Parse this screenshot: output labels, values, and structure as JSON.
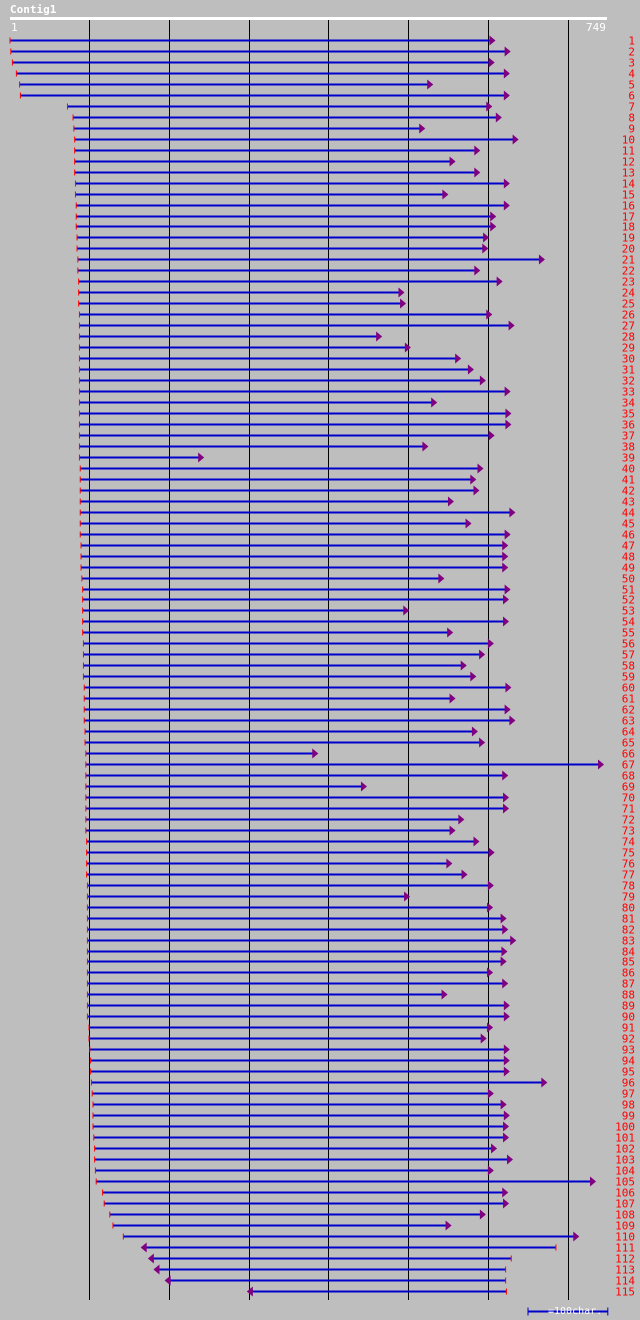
{
  "contig": {
    "name": "Contig1",
    "start_label": "1",
    "end_label": "749"
  },
  "legend": {
    "text": "=100char."
  },
  "colors": {
    "background": "#bebebe",
    "read_line": "#0000cc",
    "arrow": "#800080",
    "start_tick": "#ff0000",
    "label": "#ff0000",
    "grid": "#000000"
  },
  "axis": {
    "min": 1,
    "max": 749,
    "gridlines": [
      100,
      200,
      300,
      400,
      500,
      600,
      700
    ]
  },
  "reads": [
    {
      "id": "1",
      "start": 1,
      "end": 608,
      "dir": "fwd"
    },
    {
      "id": "2",
      "start": 2,
      "end": 627,
      "dir": "fwd"
    },
    {
      "id": "3",
      "start": 4,
      "end": 607,
      "dir": "fwd"
    },
    {
      "id": "4",
      "start": 9,
      "end": 626,
      "dir": "fwd"
    },
    {
      "id": "5",
      "start": 13,
      "end": 530,
      "dir": "fwd"
    },
    {
      "id": "6",
      "start": 14,
      "end": 626,
      "dir": "fwd"
    },
    {
      "id": "7",
      "start": 73,
      "end": 604,
      "dir": "fwd"
    },
    {
      "id": "8",
      "start": 80,
      "end": 616,
      "dir": "fwd"
    },
    {
      "id": "9",
      "start": 81,
      "end": 520,
      "dir": "fwd"
    },
    {
      "id": "10",
      "start": 82,
      "end": 637,
      "dir": "fwd"
    },
    {
      "id": "11",
      "start": 82,
      "end": 589,
      "dir": "fwd"
    },
    {
      "id": "12",
      "start": 82,
      "end": 558,
      "dir": "fwd"
    },
    {
      "id": "13",
      "start": 82,
      "end": 589,
      "dir": "fwd"
    },
    {
      "id": "14",
      "start": 83,
      "end": 626,
      "dir": "fwd"
    },
    {
      "id": "15",
      "start": 83,
      "end": 549,
      "dir": "fwd"
    },
    {
      "id": "16",
      "start": 84,
      "end": 626,
      "dir": "fwd"
    },
    {
      "id": "17",
      "start": 84,
      "end": 609,
      "dir": "fwd"
    },
    {
      "id": "18",
      "start": 84,
      "end": 609,
      "dir": "fwd"
    },
    {
      "id": "19",
      "start": 85,
      "end": 600,
      "dir": "fwd"
    },
    {
      "id": "20",
      "start": 85,
      "end": 599,
      "dir": "fwd"
    },
    {
      "id": "21",
      "start": 86,
      "end": 670,
      "dir": "fwd"
    },
    {
      "id": "22",
      "start": 86,
      "end": 589,
      "dir": "fwd"
    },
    {
      "id": "23",
      "start": 87,
      "end": 617,
      "dir": "fwd"
    },
    {
      "id": "24",
      "start": 87,
      "end": 494,
      "dir": "fwd"
    },
    {
      "id": "25",
      "start": 87,
      "end": 496,
      "dir": "fwd"
    },
    {
      "id": "26",
      "start": 88,
      "end": 604,
      "dir": "fwd"
    },
    {
      "id": "27",
      "start": 88,
      "end": 632,
      "dir": "fwd"
    },
    {
      "id": "28",
      "start": 88,
      "end": 466,
      "dir": "fwd"
    },
    {
      "id": "29",
      "start": 88,
      "end": 502,
      "dir": "fwd"
    },
    {
      "id": "30",
      "start": 88,
      "end": 565,
      "dir": "fwd"
    },
    {
      "id": "31",
      "start": 88,
      "end": 581,
      "dir": "fwd"
    },
    {
      "id": "32",
      "start": 88,
      "end": 596,
      "dir": "fwd"
    },
    {
      "id": "33",
      "start": 88,
      "end": 627,
      "dir": "fwd"
    },
    {
      "id": "34",
      "start": 88,
      "end": 535,
      "dir": "fwd"
    },
    {
      "id": "35",
      "start": 88,
      "end": 628,
      "dir": "fwd"
    },
    {
      "id": "36",
      "start": 88,
      "end": 628,
      "dir": "fwd"
    },
    {
      "id": "37",
      "start": 88,
      "end": 607,
      "dir": "fwd"
    },
    {
      "id": "38",
      "start": 88,
      "end": 524,
      "dir": "fwd"
    },
    {
      "id": "39",
      "start": 88,
      "end": 243,
      "dir": "fwd"
    },
    {
      "id": "40",
      "start": 89,
      "end": 593,
      "dir": "fwd"
    },
    {
      "id": "41",
      "start": 89,
      "end": 584,
      "dir": "fwd"
    },
    {
      "id": "42",
      "start": 89,
      "end": 588,
      "dir": "fwd"
    },
    {
      "id": "43",
      "start": 89,
      "end": 556,
      "dir": "fwd"
    },
    {
      "id": "44",
      "start": 89,
      "end": 633,
      "dir": "fwd"
    },
    {
      "id": "45",
      "start": 89,
      "end": 578,
      "dir": "fwd"
    },
    {
      "id": "46",
      "start": 89,
      "end": 627,
      "dir": "fwd"
    },
    {
      "id": "47",
      "start": 90,
      "end": 624,
      "dir": "fwd"
    },
    {
      "id": "48",
      "start": 90,
      "end": 624,
      "dir": "fwd"
    },
    {
      "id": "49",
      "start": 90,
      "end": 624,
      "dir": "fwd"
    },
    {
      "id": "50",
      "start": 91,
      "end": 544,
      "dir": "fwd"
    },
    {
      "id": "51",
      "start": 92,
      "end": 627,
      "dir": "fwd"
    },
    {
      "id": "52",
      "start": 92,
      "end": 625,
      "dir": "fwd"
    },
    {
      "id": "53",
      "start": 92,
      "end": 500,
      "dir": "fwd"
    },
    {
      "id": "54",
      "start": 92,
      "end": 625,
      "dir": "fwd"
    },
    {
      "id": "55",
      "start": 92,
      "end": 555,
      "dir": "fwd"
    },
    {
      "id": "56",
      "start": 93,
      "end": 606,
      "dir": "fwd"
    },
    {
      "id": "57",
      "start": 93,
      "end": 595,
      "dir": "fwd"
    },
    {
      "id": "58",
      "start": 93,
      "end": 572,
      "dir": "fwd"
    },
    {
      "id": "59",
      "start": 93,
      "end": 584,
      "dir": "fwd"
    },
    {
      "id": "60",
      "start": 94,
      "end": 628,
      "dir": "fwd"
    },
    {
      "id": "61",
      "start": 94,
      "end": 558,
      "dir": "fwd"
    },
    {
      "id": "62",
      "start": 94,
      "end": 627,
      "dir": "fwd"
    },
    {
      "id": "63",
      "start": 94,
      "end": 633,
      "dir": "fwd"
    },
    {
      "id": "64",
      "start": 95,
      "end": 586,
      "dir": "fwd"
    },
    {
      "id": "65",
      "start": 95,
      "end": 595,
      "dir": "fwd"
    },
    {
      "id": "66",
      "start": 96,
      "end": 386,
      "dir": "fwd"
    },
    {
      "id": "67",
      "start": 96,
      "end": 744,
      "dir": "fwd"
    },
    {
      "id": "68",
      "start": 96,
      "end": 624,
      "dir": "fwd"
    },
    {
      "id": "69",
      "start": 96,
      "end": 447,
      "dir": "fwd"
    },
    {
      "id": "70",
      "start": 96,
      "end": 625,
      "dir": "fwd"
    },
    {
      "id": "71",
      "start": 96,
      "end": 625,
      "dir": "fwd"
    },
    {
      "id": "72",
      "start": 96,
      "end": 569,
      "dir": "fwd"
    },
    {
      "id": "73",
      "start": 96,
      "end": 558,
      "dir": "fwd"
    },
    {
      "id": "74",
      "start": 97,
      "end": 588,
      "dir": "fwd"
    },
    {
      "id": "75",
      "start": 97,
      "end": 607,
      "dir": "fwd"
    },
    {
      "id": "76",
      "start": 97,
      "end": 554,
      "dir": "fwd"
    },
    {
      "id": "77",
      "start": 97,
      "end": 573,
      "dir": "fwd"
    },
    {
      "id": "78",
      "start": 98,
      "end": 606,
      "dir": "fwd"
    },
    {
      "id": "79",
      "start": 98,
      "end": 501,
      "dir": "fwd"
    },
    {
      "id": "80",
      "start": 98,
      "end": 605,
      "dir": "fwd"
    },
    {
      "id": "81",
      "start": 98,
      "end": 622,
      "dir": "fwd"
    },
    {
      "id": "82",
      "start": 98,
      "end": 624,
      "dir": "fwd"
    },
    {
      "id": "83",
      "start": 98,
      "end": 634,
      "dir": "fwd"
    },
    {
      "id": "84",
      "start": 98,
      "end": 623,
      "dir": "fwd"
    },
    {
      "id": "85",
      "start": 98,
      "end": 622,
      "dir": "fwd"
    },
    {
      "id": "86",
      "start": 98,
      "end": 605,
      "dir": "fwd"
    },
    {
      "id": "87",
      "start": 98,
      "end": 624,
      "dir": "fwd"
    },
    {
      "id": "88",
      "start": 98,
      "end": 548,
      "dir": "fwd"
    },
    {
      "id": "89",
      "start": 98,
      "end": 626,
      "dir": "fwd"
    },
    {
      "id": "90",
      "start": 98,
      "end": 626,
      "dir": "fwd"
    },
    {
      "id": "91",
      "start": 100,
      "end": 605,
      "dir": "fwd"
    },
    {
      "id": "92",
      "start": 100,
      "end": 597,
      "dir": "fwd"
    },
    {
      "id": "93",
      "start": 101,
      "end": 626,
      "dir": "fwd"
    },
    {
      "id": "94",
      "start": 102,
      "end": 626,
      "dir": "fwd"
    },
    {
      "id": "95",
      "start": 102,
      "end": 626,
      "dir": "fwd"
    },
    {
      "id": "96",
      "start": 103,
      "end": 673,
      "dir": "fwd"
    },
    {
      "id": "97",
      "start": 104,
      "end": 606,
      "dir": "fwd"
    },
    {
      "id": "98",
      "start": 105,
      "end": 622,
      "dir": "fwd"
    },
    {
      "id": "99",
      "start": 105,
      "end": 626,
      "dir": "fwd"
    },
    {
      "id": "100",
      "start": 105,
      "end": 625,
      "dir": "fwd"
    },
    {
      "id": "101",
      "start": 106,
      "end": 625,
      "dir": "fwd"
    },
    {
      "id": "102",
      "start": 107,
      "end": 610,
      "dir": "fwd"
    },
    {
      "id": "103",
      "start": 107,
      "end": 630,
      "dir": "fwd"
    },
    {
      "id": "104",
      "start": 108,
      "end": 606,
      "dir": "fwd"
    },
    {
      "id": "105",
      "start": 109,
      "end": 734,
      "dir": "fwd"
    },
    {
      "id": "106",
      "start": 117,
      "end": 624,
      "dir": "fwd"
    },
    {
      "id": "107",
      "start": 119,
      "end": 625,
      "dir": "fwd"
    },
    {
      "id": "108",
      "start": 126,
      "end": 596,
      "dir": "fwd"
    },
    {
      "id": "109",
      "start": 130,
      "end": 553,
      "dir": "fwd"
    },
    {
      "id": "110",
      "start": 143,
      "end": 713,
      "dir": "fwd"
    },
    {
      "id": "111",
      "start": 166,
      "end": 685,
      "dir": "rev"
    },
    {
      "id": "112",
      "start": 175,
      "end": 629,
      "dir": "rev"
    },
    {
      "id": "113",
      "start": 182,
      "end": 622,
      "dir": "rev"
    },
    {
      "id": "114",
      "start": 196,
      "end": 622,
      "dir": "rev"
    },
    {
      "id": "115",
      "start": 299,
      "end": 623,
      "dir": "rev"
    }
  ]
}
